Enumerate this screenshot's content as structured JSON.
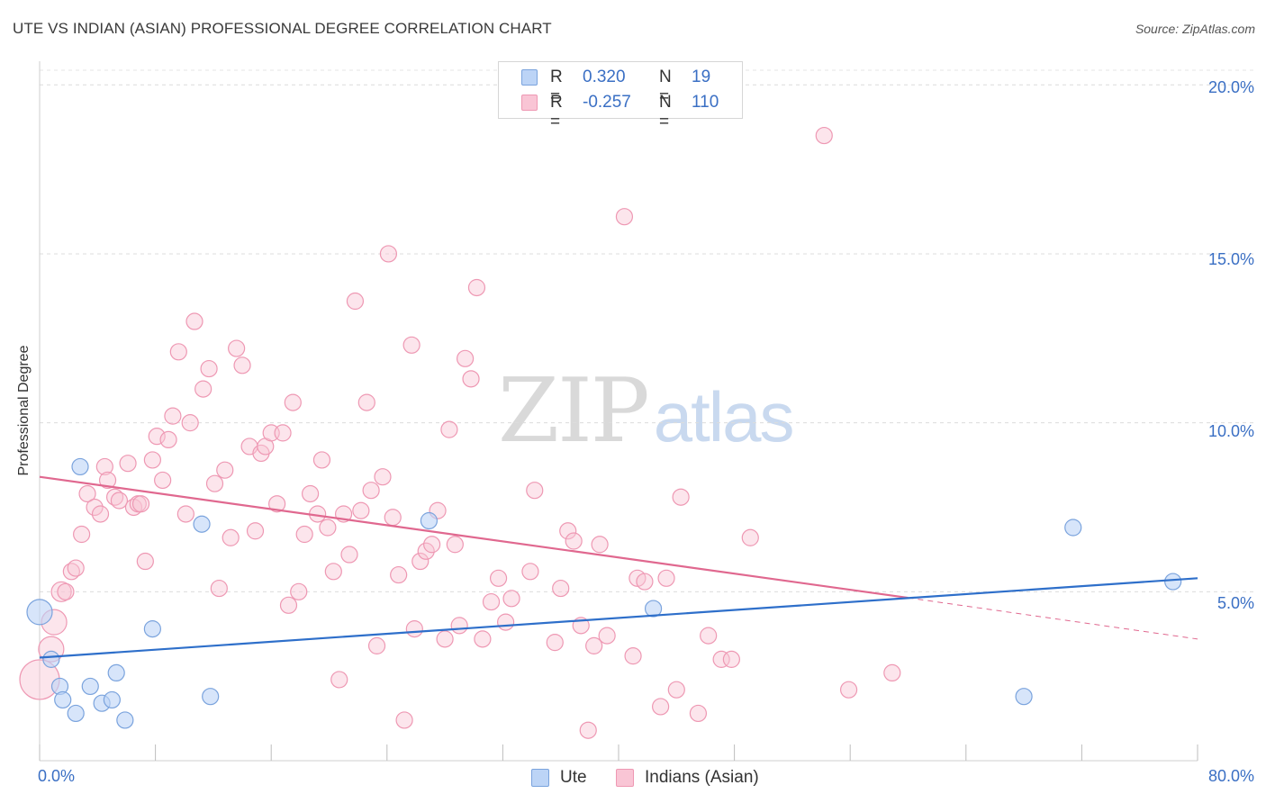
{
  "header": {
    "title": "UTE VS INDIAN (ASIAN) PROFESSIONAL DEGREE CORRELATION CHART",
    "source": "Source: ZipAtlas.com"
  },
  "watermark": {
    "zip": "ZIP",
    "atlas": "atlas"
  },
  "legend": {
    "ute": {
      "r_label": "R =",
      "r_value": "0.320",
      "n_label": "N =",
      "n_value": "19"
    },
    "indian": {
      "r_label": "R =",
      "r_value": "-0.257",
      "n_label": "N =",
      "n_value": "110"
    }
  },
  "bottom_legend": {
    "ute": "Ute",
    "indian": "Indians (Asian)"
  },
  "axis_labels": {
    "x_min": "0.0%",
    "x_max": "80.0%",
    "y_ticks": [
      "5.0%",
      "10.0%",
      "15.0%",
      "20.0%"
    ],
    "ylabel": "Professional Degree"
  },
  "colors": {
    "ute_fill": "#bcd4f6",
    "ute_stroke": "#7aa3dd",
    "ute_line": "#2e6fca",
    "indian_fill": "#f9c5d5",
    "indian_stroke": "#ee98b3",
    "indian_line": "#e0688f"
  },
  "chart_data": {
    "type": "scatter",
    "title": "UTE VS INDIAN (ASIAN) PROFESSIONAL DEGREE CORRELATION CHART",
    "xlabel": "",
    "ylabel": "Professional Degree",
    "xlim": [
      0,
      80
    ],
    "ylim": [
      0,
      20.7
    ],
    "grid": true,
    "series": [
      {
        "name": "Ute",
        "r": 0.32,
        "n": 19,
        "points": [
          [
            0.0,
            4.4,
            14
          ],
          [
            0.8,
            3.0,
            9
          ],
          [
            1.4,
            2.2,
            9
          ],
          [
            1.6,
            1.8,
            9
          ],
          [
            2.5,
            1.4,
            9
          ],
          [
            2.8,
            8.7,
            9
          ],
          [
            3.5,
            2.2,
            9
          ],
          [
            4.3,
            1.7,
            9
          ],
          [
            5.0,
            1.8,
            9
          ],
          [
            5.3,
            2.6,
            9
          ],
          [
            5.9,
            1.2,
            9
          ],
          [
            7.8,
            3.9,
            9
          ],
          [
            11.2,
            7.0,
            9
          ],
          [
            11.8,
            1.9,
            9
          ],
          [
            26.9,
            7.1,
            9
          ],
          [
            42.4,
            4.5,
            9
          ],
          [
            68.0,
            1.9,
            9
          ],
          [
            71.4,
            6.9,
            9
          ],
          [
            78.3,
            5.3,
            9
          ]
        ],
        "trend": {
          "x": [
            0,
            80
          ],
          "y": [
            3.05,
            5.4
          ]
        }
      },
      {
        "name": "Indians (Asian)",
        "r": -0.257,
        "n": 110,
        "points": [
          [
            0.0,
            2.4,
            22
          ],
          [
            0.8,
            3.3,
            14
          ],
          [
            1.0,
            4.1,
            14
          ],
          [
            1.5,
            5.0,
            11
          ],
          [
            1.8,
            5.0,
            9
          ],
          [
            2.2,
            5.6,
            9
          ],
          [
            2.5,
            5.7,
            9
          ],
          [
            2.9,
            6.7,
            9
          ],
          [
            3.3,
            7.9,
            9
          ],
          [
            3.8,
            7.5,
            9
          ],
          [
            4.2,
            7.3,
            9
          ],
          [
            4.5,
            8.7,
            9
          ],
          [
            4.7,
            8.3,
            9
          ],
          [
            5.2,
            7.8,
            9
          ],
          [
            5.5,
            7.7,
            9
          ],
          [
            6.1,
            8.8,
            9
          ],
          [
            6.5,
            7.5,
            9
          ],
          [
            6.8,
            7.6,
            9
          ],
          [
            7.0,
            7.6,
            9
          ],
          [
            7.3,
            5.9,
            9
          ],
          [
            7.8,
            8.9,
            9
          ],
          [
            8.1,
            9.6,
            9
          ],
          [
            8.5,
            8.3,
            9
          ],
          [
            8.9,
            9.5,
            9
          ],
          [
            9.2,
            10.2,
            9
          ],
          [
            9.6,
            12.1,
            9
          ],
          [
            10.1,
            7.3,
            9
          ],
          [
            10.4,
            10.0,
            9
          ],
          [
            10.7,
            13.0,
            9
          ],
          [
            11.3,
            11.0,
            9
          ],
          [
            11.7,
            11.6,
            9
          ],
          [
            12.1,
            8.2,
            9
          ],
          [
            12.4,
            5.1,
            9
          ],
          [
            12.8,
            8.6,
            9
          ],
          [
            13.2,
            6.6,
            9
          ],
          [
            13.6,
            12.2,
            9
          ],
          [
            14.0,
            11.7,
            9
          ],
          [
            14.5,
            9.3,
            9
          ],
          [
            14.9,
            6.8,
            9
          ],
          [
            15.3,
            9.1,
            9
          ],
          [
            15.6,
            9.3,
            9
          ],
          [
            16.0,
            9.7,
            9
          ],
          [
            16.4,
            7.6,
            9
          ],
          [
            16.8,
            9.7,
            9
          ],
          [
            17.2,
            4.6,
            9
          ],
          [
            17.5,
            10.6,
            9
          ],
          [
            17.9,
            5.0,
            9
          ],
          [
            18.3,
            6.7,
            9
          ],
          [
            18.7,
            7.9,
            9
          ],
          [
            19.2,
            7.3,
            9
          ],
          [
            19.5,
            8.9,
            9
          ],
          [
            19.9,
            6.9,
            9
          ],
          [
            20.3,
            5.6,
            9
          ],
          [
            20.7,
            2.4,
            9
          ],
          [
            21.0,
            7.3,
            9
          ],
          [
            21.4,
            6.1,
            9
          ],
          [
            21.8,
            13.6,
            9
          ],
          [
            22.2,
            7.4,
            9
          ],
          [
            22.6,
            10.6,
            9
          ],
          [
            22.9,
            8.0,
            9
          ],
          [
            23.3,
            3.4,
            9
          ],
          [
            23.7,
            8.4,
            9
          ],
          [
            24.1,
            15.0,
            9
          ],
          [
            24.4,
            7.2,
            9
          ],
          [
            24.8,
            5.5,
            9
          ],
          [
            25.2,
            1.2,
            9
          ],
          [
            25.7,
            12.3,
            9
          ],
          [
            25.9,
            3.9,
            9
          ],
          [
            26.3,
            5.9,
            9
          ],
          [
            26.7,
            6.2,
            9
          ],
          [
            27.1,
            6.4,
            9
          ],
          [
            27.5,
            7.4,
            9
          ],
          [
            28.0,
            3.6,
            9
          ],
          [
            28.3,
            9.8,
            9
          ],
          [
            28.7,
            6.4,
            9
          ],
          [
            29.0,
            4.0,
            9
          ],
          [
            29.4,
            11.9,
            9
          ],
          [
            29.8,
            11.3,
            9
          ],
          [
            30.2,
            14.0,
            9
          ],
          [
            30.6,
            3.6,
            9
          ],
          [
            31.2,
            4.7,
            9
          ],
          [
            31.7,
            5.4,
            9
          ],
          [
            32.2,
            4.1,
            9
          ],
          [
            32.6,
            4.8,
            9
          ],
          [
            33.9,
            5.6,
            9
          ],
          [
            34.2,
            8.0,
            9
          ],
          [
            35.6,
            3.5,
            9
          ],
          [
            36.0,
            5.1,
            9
          ],
          [
            36.5,
            6.8,
            9
          ],
          [
            36.9,
            6.5,
            9
          ],
          [
            37.4,
            4.0,
            9
          ],
          [
            37.9,
            0.9,
            9
          ],
          [
            38.3,
            3.4,
            9
          ],
          [
            38.7,
            6.4,
            9
          ],
          [
            39.2,
            3.7,
            9
          ],
          [
            40.4,
            16.1,
            9
          ],
          [
            41.0,
            3.1,
            9
          ],
          [
            41.3,
            5.4,
            9
          ],
          [
            41.8,
            5.3,
            9
          ],
          [
            42.9,
            1.6,
            9
          ],
          [
            43.3,
            5.4,
            9
          ],
          [
            44.0,
            2.1,
            9
          ],
          [
            44.3,
            7.8,
            9
          ],
          [
            45.5,
            1.4,
            9
          ],
          [
            46.2,
            3.7,
            9
          ],
          [
            47.1,
            3.0,
            9
          ],
          [
            47.8,
            3.0,
            9
          ],
          [
            49.1,
            6.6,
            9
          ],
          [
            54.2,
            18.5,
            9
          ],
          [
            55.9,
            2.1,
            9
          ],
          [
            58.9,
            2.6,
            9
          ]
        ],
        "trend": {
          "x": [
            0,
            60
          ],
          "x_dashed_end": 80,
          "y": [
            8.4,
            4.82
          ],
          "y_dashed_end": 3.6
        }
      }
    ]
  }
}
